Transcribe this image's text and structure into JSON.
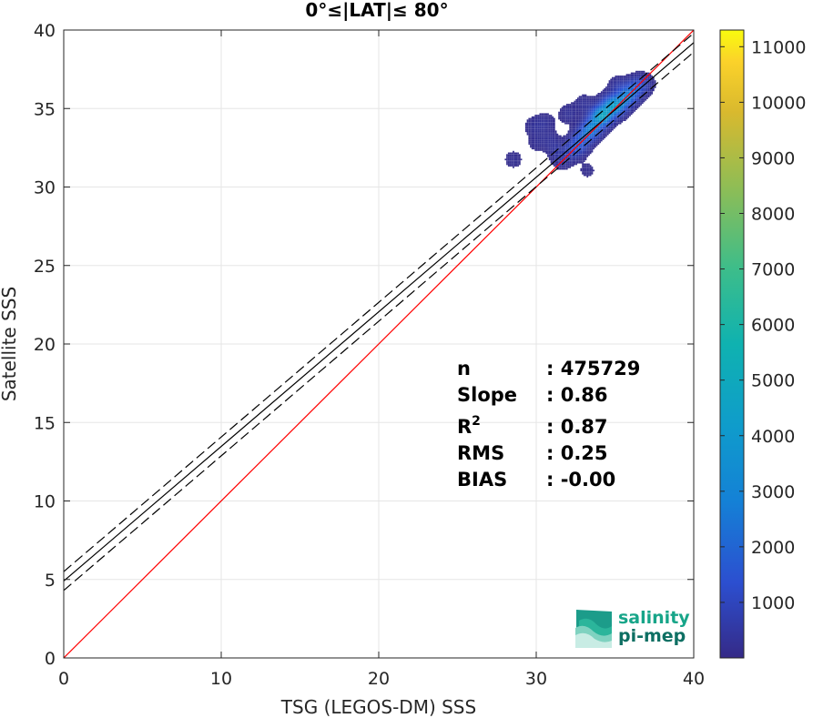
{
  "chart_data": {
    "type": "heatmap",
    "title": "0°≤|LAT|≤ 80°",
    "xlabel": "TSG (LEGOS-DM) SSS",
    "ylabel": "Satellite SSS",
    "xlim": [
      0,
      40
    ],
    "ylim": [
      0,
      40
    ],
    "xticks": [
      "0",
      "10",
      "20",
      "30",
      "40"
    ],
    "yticks": [
      "0",
      "5",
      "10",
      "15",
      "20",
      "25",
      "30",
      "35",
      "40"
    ],
    "grid": true,
    "colorbar": {
      "range": [
        0,
        11300
      ],
      "ticks": [
        "1000",
        "2000",
        "3000",
        "4000",
        "5000",
        "6000",
        "7000",
        "8000",
        "9000",
        "10000",
        "11000"
      ],
      "colormap": "parula"
    },
    "lines": [
      {
        "kind": "identity",
        "color": "#ff0000",
        "x": [
          0,
          40
        ],
        "y": [
          0,
          40
        ]
      },
      {
        "kind": "regression",
        "color": "#000000",
        "style": "solid",
        "x": [
          0,
          40
        ],
        "y": [
          4.9,
          39.2
        ]
      },
      {
        "kind": "regression-upper",
        "color": "#000000",
        "style": "dashed",
        "x": [
          0,
          40
        ],
        "y": [
          5.5,
          39.8
        ]
      },
      {
        "kind": "regression-lower",
        "color": "#000000",
        "style": "dashed",
        "x": [
          0,
          40
        ],
        "y": [
          4.3,
          38.6
        ]
      }
    ],
    "density_cluster": {
      "points": [
        [
          34.2,
          34.5,
          3800
        ],
        [
          35.0,
          35.1,
          3000
        ],
        [
          33.5,
          33.7,
          2500
        ],
        [
          35.6,
          35.6,
          2000
        ],
        [
          33.0,
          33.2,
          1600
        ],
        [
          36.0,
          36.0,
          1400
        ],
        [
          32.6,
          32.6,
          1100
        ],
        [
          34.6,
          35.2,
          1500
        ],
        [
          33.8,
          34.4,
          1200
        ],
        [
          36.4,
          36.4,
          900
        ],
        [
          32.2,
          32.3,
          700
        ],
        [
          31.6,
          31.7,
          400
        ],
        [
          30.5,
          34.0,
          300
        ],
        [
          29.8,
          33.8,
          250
        ],
        [
          32.0,
          34.6,
          300
        ],
        [
          31.2,
          32.4,
          300
        ],
        [
          33.0,
          35.2,
          300
        ],
        [
          28.5,
          31.7,
          200
        ],
        [
          30.0,
          32.8,
          200
        ],
        [
          33.2,
          31.0,
          150
        ],
        [
          36.8,
          36.5,
          400
        ],
        [
          35.2,
          36.3,
          500
        ],
        [
          30.8,
          33.0,
          200
        ]
      ]
    },
    "stats": [
      {
        "label": "n",
        "value": ": 475729"
      },
      {
        "label": "Slope",
        "value": ": 0.86"
      },
      {
        "label": "R",
        "sup": "2",
        "value": ": 0.87"
      },
      {
        "label": "RMS",
        "value": ": 0.25"
      },
      {
        "label": "BIAS",
        "value": ": -0.00"
      }
    ]
  },
  "logo": {
    "line1": "salinity",
    "line2": "pi-mep"
  },
  "colors": {
    "identity": "#ff0000",
    "regression": "#000000",
    "logo_accent": "#17a589"
  }
}
